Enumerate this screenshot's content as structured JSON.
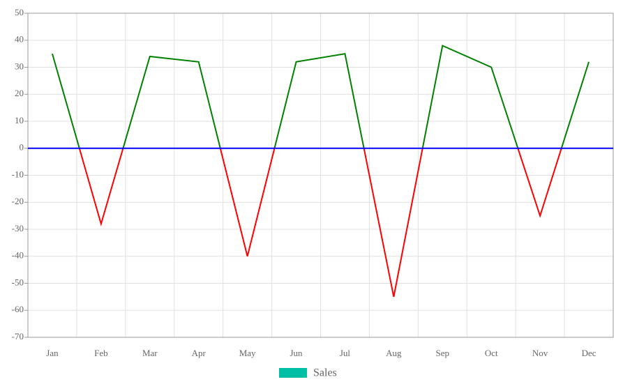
{
  "chart_data": {
    "type": "line",
    "categories": [
      "Jan",
      "Feb",
      "Mar",
      "Apr",
      "May",
      "Jun",
      "Jul",
      "Aug",
      "Sep",
      "Oct",
      "Nov",
      "Dec"
    ],
    "series": [
      {
        "name": "Sales",
        "color": "#00bfa5",
        "positive_color": "#008000",
        "negative_color": "#ff0000",
        "values": [
          35,
          -28,
          34,
          32,
          -40,
          32,
          35,
          -55,
          38,
          30,
          -25,
          32
        ]
      }
    ],
    "ylim": [
      -70,
      50
    ],
    "yticks": [
      -70,
      -60,
      -50,
      -40,
      -30,
      -20,
      -10,
      0,
      10,
      20,
      30,
      40,
      50
    ],
    "zero_line_color": "#0000ff",
    "grid": true,
    "legend": "bottom"
  }
}
